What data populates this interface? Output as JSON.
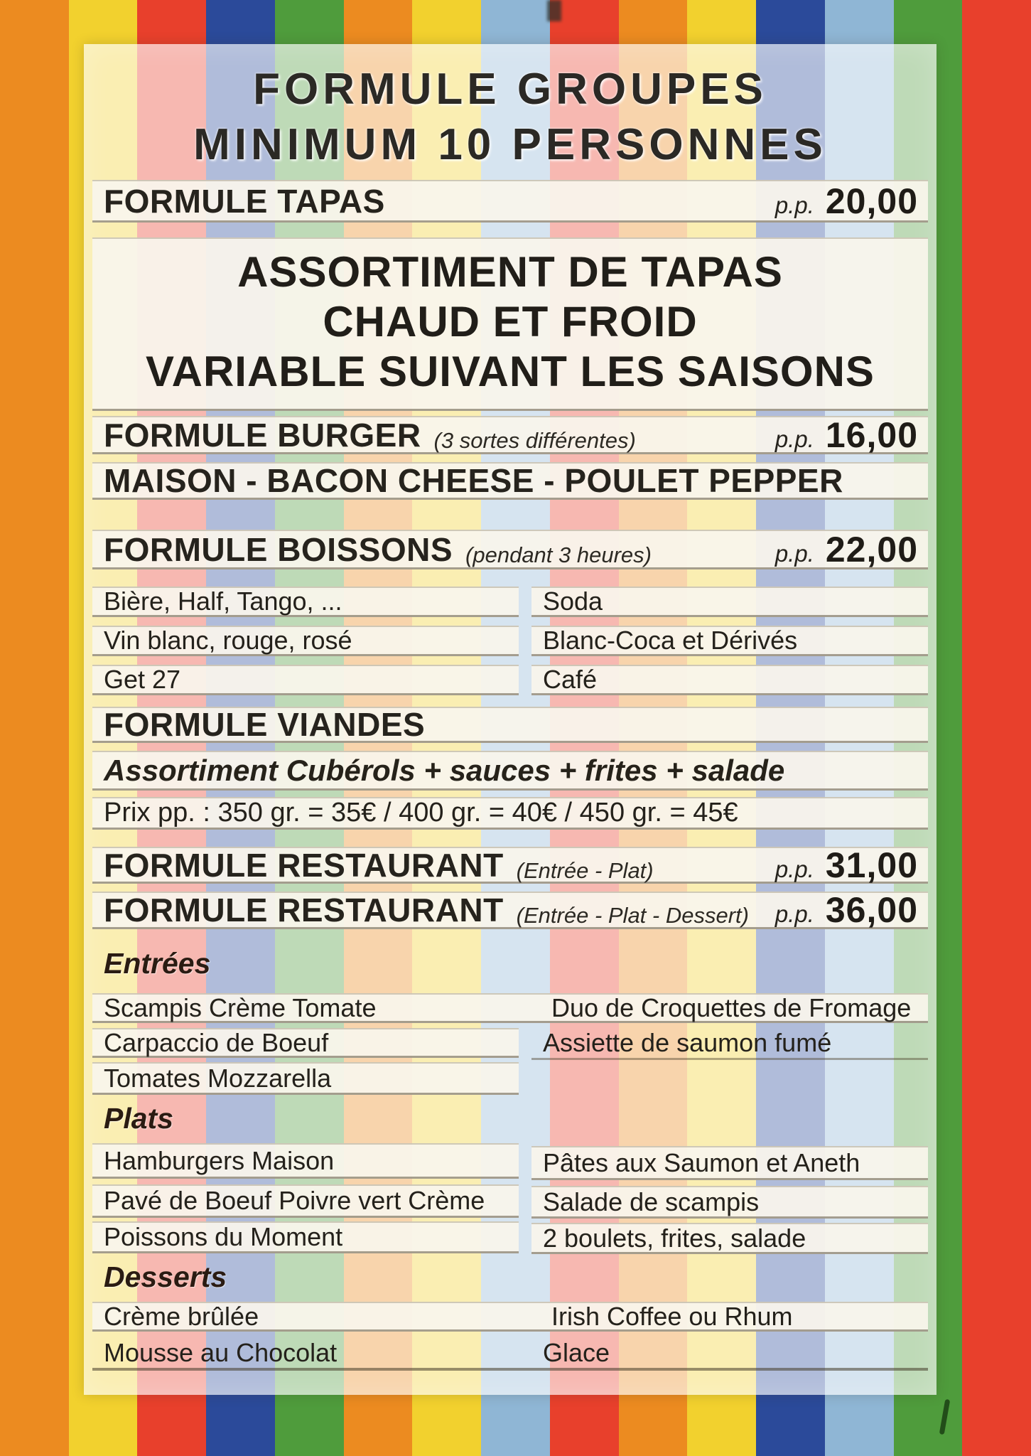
{
  "colors": {
    "stripes": [
      "#ec8b20",
      "#f2d12e",
      "#e8402c",
      "#2b4a9a",
      "#4f9c3c",
      "#ec8b20",
      "#f2d12e",
      "#8fb6d5",
      "#e8402c",
      "#ec8b20",
      "#f2d12e",
      "#2b4a9a",
      "#8fb6d5",
      "#4f9c3c",
      "#e8402c"
    ],
    "sheet_wash": "#f5f1e8",
    "bar": "#f9f5ec",
    "text": "#26231d"
  },
  "header": {
    "title_line1": "FORMULE GROUPES",
    "title_line2": "MINIMUM 10 PERSONNES"
  },
  "sections": {
    "tapas": {
      "title": "FORMULE TAPAS",
      "pp": "p.p.",
      "price": "20,00",
      "description_lines": [
        "ASSORTIMENT DE TAPAS",
        "CHAUD ET FROID",
        "VARIABLE SUIVANT LES SAISONS"
      ]
    },
    "burger": {
      "title": "FORMULE BURGER",
      "note": "(3 sortes différentes)",
      "pp": "p.p.",
      "price": "16,00",
      "subtitle": "MAISON - BACON CHEESE - POULET PEPPER"
    },
    "boissons": {
      "title": "FORMULE BOISSONS",
      "note": "(pendant 3 heures)",
      "pp": "p.p.",
      "price": "22,00",
      "items_left": [
        "Bière, Half, Tango, ...",
        "Vin blanc, rouge, rosé",
        "Get 27"
      ],
      "items_right": [
        "Soda",
        "Blanc-Coca et Dérivés",
        "Café"
      ]
    },
    "viandes": {
      "title": "FORMULE VIANDES",
      "subtitle": "Assortiment Cubérols + sauces + frites + salade",
      "prices_line": "Prix pp. :  350 gr. = 35€   /   400 gr. = 40€   /   450 gr. = 45€"
    },
    "restaurant": [
      {
        "title": "FORMULE RESTAURANT",
        "note": "(Entrée - Plat)",
        "pp": "p.p.",
        "price": "31,00"
      },
      {
        "title": "FORMULE RESTAURANT",
        "note": "(Entrée - Plat - Dessert)",
        "pp": "p.p.",
        "price": "36,00"
      }
    ],
    "entrees": {
      "heading": "Entrées",
      "rows": [
        [
          "Scampis Crème Tomate",
          "Duo de Croquettes de Fromage"
        ],
        [
          "Carpaccio de Boeuf",
          "Assiette de saumon fumé"
        ],
        [
          "Tomates Mozzarella",
          ""
        ]
      ]
    },
    "plats": {
      "heading": "Plats",
      "rows": [
        [
          "Hamburgers Maison",
          "Pâtes aux Saumon et Aneth"
        ],
        [
          "Pavé de Boeuf Poivre vert Crème",
          "Salade de scampis"
        ],
        [
          "Poissons du Moment",
          "2 boulets, frites, salade"
        ]
      ]
    },
    "desserts": {
      "heading": "Desserts",
      "rows": [
        [
          "Crème brûlée",
          "Irish Coffee ou Rhum"
        ],
        [
          "Mousse au Chocolat",
          "Glace"
        ]
      ]
    }
  }
}
